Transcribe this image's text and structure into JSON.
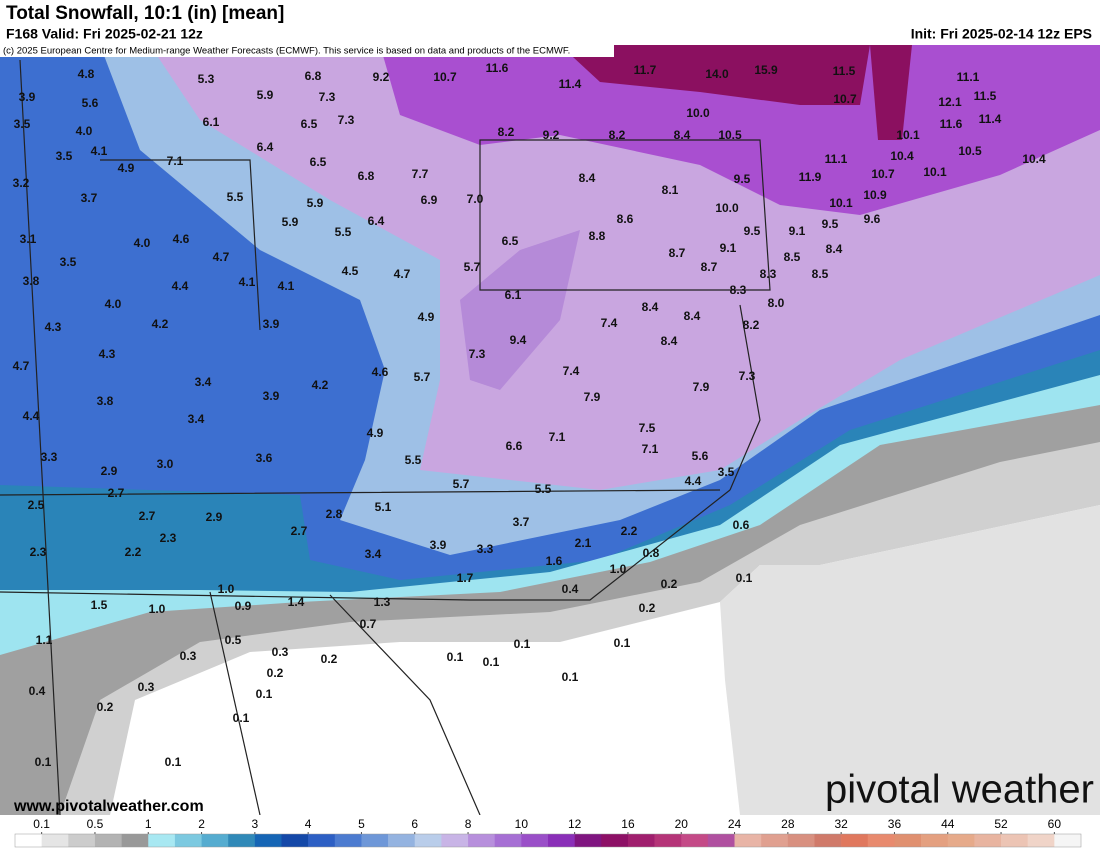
{
  "header": {
    "title": "Total Snowfall, 10:1 (in) [mean]",
    "valid": "F168 Valid: Fri 2025-02-21 12z",
    "init": "Init: Fri 2025-02-14 12z EPS",
    "credit": "(c) 2025 European Centre for Medium-range Weather Forecasts (ECMWF). This service is based on data and products of the ECMWF."
  },
  "map": {
    "labels": [
      "4.8",
      "5.3",
      "6.8",
      "9.2",
      "10.7",
      "11.6",
      "11.7",
      "14.0",
      "15.9",
      "11.5",
      "11.1",
      "3.9",
      "5.6",
      "5.9",
      "7.3",
      "11.4",
      "10.7",
      "12.1",
      "11.5",
      "3.5",
      "4.0",
      "6.1",
      "6.5",
      "7.3",
      "10.0",
      "11.6",
      "11.4",
      "8.2",
      "9.2",
      "8.2",
      "8.4",
      "10.5",
      "10.1",
      "3.5",
      "4.1",
      "6.4",
      "11.1",
      "10.4",
      "10.5",
      "10.4",
      "4.9",
      "7.1",
      "6.5",
      "6.8",
      "7.7",
      "11.9",
      "10.7",
      "10.1",
      "3.2",
      "8.4",
      "8.1",
      "9.5",
      "3.7",
      "5.5",
      "5.9",
      "6.9",
      "7.0",
      "10.0",
      "10.1",
      "10.9",
      "9.6",
      "9.5",
      "5.9",
      "5.5",
      "6.4",
      "8.6",
      "9.5",
      "9.1",
      "3.1",
      "4.0",
      "4.6",
      "6.5",
      "8.8",
      "9.1",
      "8.4",
      "3.5",
      "4.7",
      "4.5",
      "4.7",
      "5.7",
      "8.7",
      "8.5",
      "8.7",
      "8.5",
      "3.8",
      "4.4",
      "4.1",
      "4.1",
      "8.3",
      "6.1",
      "8.3",
      "8.0",
      "4.0",
      "4.2",
      "3.9",
      "4.9",
      "8.4",
      "8.4",
      "7.4",
      "8.2",
      "4.3",
      "9.4",
      "8.4",
      "4.3",
      "7.3",
      "4.7",
      "4.6",
      "5.7",
      "7.4",
      "7.3",
      "3.4",
      "4.2",
      "7.9",
      "3.8",
      "3.9",
      "7.9",
      "4.4",
      "3.4",
      "7.5",
      "4.9",
      "7.1",
      "7.1",
      "3.3",
      "3.6",
      "5.5",
      "6.6",
      "5.6",
      "3.0",
      "2.9",
      "3.5",
      "4.4",
      "5.7",
      "5.5",
      "2.7",
      "2.5",
      "5.1",
      "2.8",
      "3.7",
      "2.7",
      "2.9",
      "2.7",
      "0.6",
      "2.2",
      "2.3",
      "3.9",
      "3.3",
      "2.1",
      "2.3",
      "2.2",
      "3.4",
      "0.8",
      "1.6",
      "1.0",
      "0.1",
      "1.7",
      "0.2",
      "0.4",
      "1.0",
      "1.5",
      "1.0",
      "0.9",
      "1.4",
      "1.3",
      "0.2",
      "0.7",
      "1.1",
      "0.5",
      "0.3",
      "0.1",
      "0.1",
      "0.3",
      "0.2",
      "0.1",
      "0.1",
      "0.2",
      "0.4",
      "0.3",
      "0.1",
      "0.1",
      "0.2",
      "0.1",
      "0.1",
      "0.1"
    ]
  },
  "footer": {
    "website": "www.pivotalweather.com",
    "logo": "pivotal weather"
  },
  "colorbar": {
    "ticks": [
      0.1,
      0.5,
      1,
      2,
      3,
      4,
      5,
      6,
      8,
      10,
      12,
      16,
      20,
      24,
      28,
      32,
      36,
      44,
      52,
      60
    ],
    "colors": [
      "#ffffff",
      "#e5e5e5",
      "#cccccc",
      "#b3b3b3",
      "#999999",
      "#a8e8f2",
      "#7cc9e0",
      "#55acd0",
      "#3089b8",
      "#1565b5",
      "#1448a8",
      "#2d5fc4",
      "#4c7bd0",
      "#6e97d8",
      "#94b3e0",
      "#b9cdea",
      "#c8b4e6",
      "#b78fdc",
      "#a66fd4",
      "#9a4fc8",
      "#8a2fb8",
      "#7f1580",
      "#8d1066",
      "#a01f6e",
      "#b53478",
      "#c44a87",
      "#b050a0",
      "#e8b4a6",
      "#e0a090",
      "#d89080",
      "#d07a6a",
      "#e0785e",
      "#e88a6e",
      "#e09070",
      "#e4a080",
      "#e6aa8a",
      "#e8b4a0",
      "#ecc4b4",
      "#f0d4c8",
      "#f5f5f5"
    ]
  }
}
